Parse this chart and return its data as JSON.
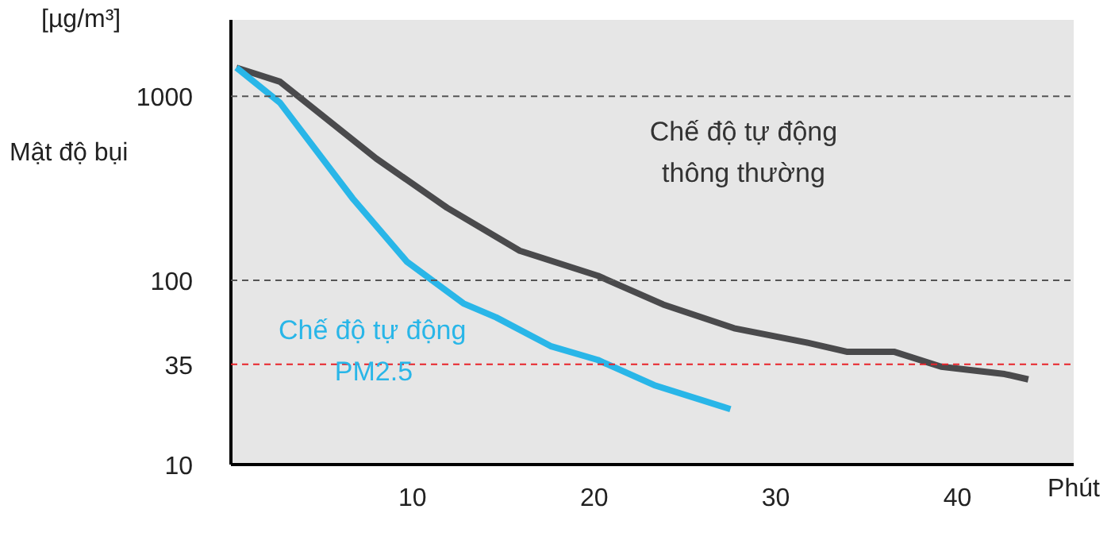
{
  "chart_data": {
    "type": "line",
    "xlabel": "Phút",
    "ylabel": "Mật độ bụi",
    "annotations": [
      "[µg/m³]"
    ],
    "xlim": [
      0,
      46.4
    ],
    "ylim": [
      10,
      2600
    ],
    "log": "y",
    "xticks": [
      10,
      20,
      30,
      40
    ],
    "yticks": [
      10,
      35,
      100,
      1000
    ],
    "ref_lines": [
      {
        "axis": "y",
        "value": 1000,
        "color": "#555555",
        "line_style": "dashed"
      },
      {
        "axis": "y",
        "value": 100,
        "color": "#555555",
        "line_style": "dashed"
      },
      {
        "axis": "y",
        "value": 35,
        "color": "#e8232a",
        "line_style": "dashed"
      }
    ],
    "series": [
      {
        "name": "Chế độ tự động thông thường",
        "color": "#4a4a4c",
        "x": [
          0.3,
          2.7,
          8,
          11.9,
          15.9,
          20.2,
          23.8,
          27.7,
          31.7,
          33.9,
          36.5,
          39.1,
          42.6,
          43.9
        ],
        "values": [
          1430,
          1200,
          459,
          248,
          145,
          106,
          74,
          55,
          46,
          41,
          41,
          34,
          31,
          29
        ]
      },
      {
        "name": "Chế độ tự động PM2.5",
        "color": "#29b6e8",
        "x": [
          0.3,
          2.7,
          6.7,
          9.7,
          12.8,
          14.6,
          17.6,
          20.2,
          23.3,
          27.5
        ],
        "values": [
          1430,
          923,
          279,
          126,
          75,
          63,
          44,
          37,
          27,
          20
        ]
      }
    ]
  }
}
